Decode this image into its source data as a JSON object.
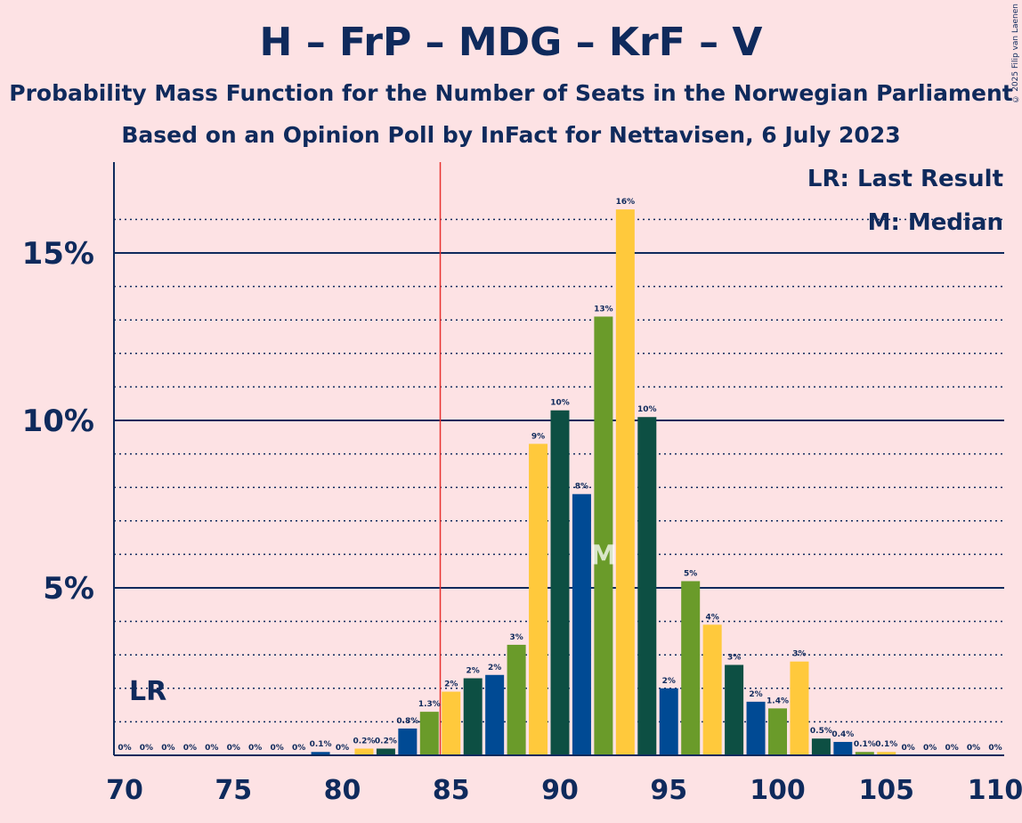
{
  "header": {
    "title": "H – FrP – MDG – KrF – V",
    "subtitle_line1": "Probability Mass Function for the Number of Seats in the Norwegian Parliament",
    "subtitle_line2": "Based on an Opinion Poll by InFact for Nettavisen, 6 July 2023",
    "copyright": "© 2025 Filip van Laenen"
  },
  "legend": {
    "last_result": "LR: Last Result",
    "median": "M: Median"
  },
  "markers": {
    "lr_label": "LR",
    "median_label": "M",
    "last_result_seat": 84.5,
    "median_seat": 92
  },
  "colors": {
    "dark_green": "#0d4f43",
    "blue": "#004a94",
    "olive": "#6a9b2a",
    "yellow": "#ffc93c",
    "lr_line": "#e8312f",
    "axis": "#0f2a5c",
    "background": "#fde2e4"
  },
  "chart_data": {
    "type": "bar",
    "title": "H – FrP – MDG – KrF – V",
    "xlabel": "",
    "ylabel": "",
    "xlim": [
      70,
      110
    ],
    "ylim": [
      0,
      17.8
    ],
    "x_ticks": [
      "70",
      "75",
      "80",
      "85",
      "90",
      "95",
      "100",
      "105",
      "110"
    ],
    "y_ticks": [
      "5%",
      "10%",
      "15%"
    ],
    "grid": true,
    "seats": [
      70,
      71,
      72,
      73,
      74,
      75,
      76,
      77,
      78,
      79,
      80,
      81,
      82,
      83,
      84,
      85,
      86,
      87,
      88,
      89,
      90,
      91,
      92,
      93,
      94,
      95,
      96,
      97,
      98,
      99,
      100,
      101,
      102,
      103,
      104,
      105,
      106,
      107,
      108,
      109,
      110
    ],
    "values": [
      0,
      0,
      0,
      0,
      0,
      0,
      0,
      0,
      0,
      0.1,
      0,
      0.2,
      0.2,
      0.8,
      1.3,
      1.9,
      2.3,
      2.4,
      3.3,
      9.3,
      10.3,
      7.8,
      13.1,
      16.3,
      10.1,
      2.0,
      5.2,
      3.9,
      2.7,
      1.6,
      1.4,
      2.8,
      0.5,
      0.4,
      0.1,
      0.1,
      0,
      0,
      0,
      0,
      0
    ],
    "labels": [
      "0%",
      "0%",
      "0%",
      "0%",
      "0%",
      "0%",
      "0%",
      "0%",
      "0%",
      "0.1%",
      "0%",
      "0.2%",
      "0.2%",
      "0.8%",
      "1.3%",
      "2%",
      "2%",
      "2%",
      "3%",
      "9%",
      "10%",
      "8%",
      "13%",
      "16%",
      "10%",
      "2%",
      "5%",
      "4%",
      "3%",
      "2%",
      "1.4%",
      "3%",
      "0.5%",
      "0.4%",
      "0.1%",
      "0.1%",
      "0%",
      "0%",
      "0%",
      "0%",
      "0%"
    ]
  }
}
